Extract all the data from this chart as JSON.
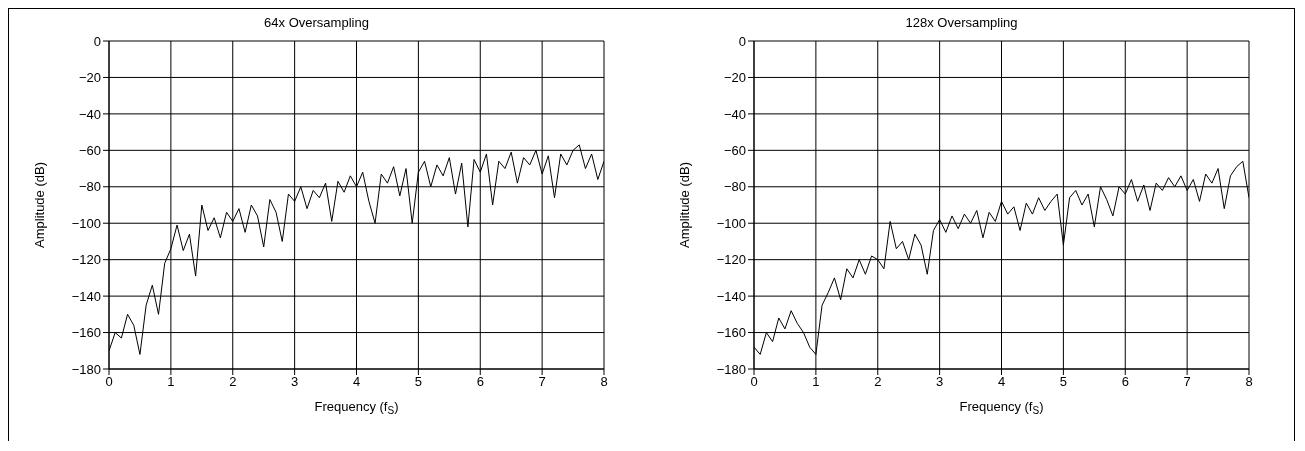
{
  "chart_data": [
    {
      "type": "line",
      "title": "64x Oversampling",
      "xlabel": "Frequency (f$_{S}$)",
      "ylabel": "Amplitude (dB)",
      "xlim": [
        0,
        8
      ],
      "xticks": [
        0,
        1,
        2,
        3,
        4,
        5,
        6,
        7,
        8
      ],
      "ylim": [
        -180,
        0
      ],
      "yticks": [
        -180,
        -160,
        -140,
        -120,
        -100,
        -80,
        -60,
        -40,
        -20,
        0
      ],
      "grid": true,
      "x": [
        0,
        0.1,
        0.2,
        0.3,
        0.4,
        0.5,
        0.6,
        0.7,
        0.8,
        0.9,
        1,
        1.1,
        1.2,
        1.3,
        1.4,
        1.5,
        1.6,
        1.7,
        1.8,
        1.9,
        2,
        2.1,
        2.2,
        2.3,
        2.4,
        2.5,
        2.6,
        2.7,
        2.8,
        2.9,
        3,
        3.1,
        3.2,
        3.3,
        3.4,
        3.5,
        3.6,
        3.7,
        3.8,
        3.9,
        4,
        4.1,
        4.2,
        4.3,
        4.4,
        4.5,
        4.6,
        4.7,
        4.8,
        4.9,
        5,
        5.1,
        5.2,
        5.3,
        5.4,
        5.5,
        5.6,
        5.7,
        5.8,
        5.9,
        6,
        6.1,
        6.2,
        6.3,
        6.4,
        6.5,
        6.6,
        6.7,
        6.8,
        6.9,
        7,
        7.1,
        7.2,
        7.3,
        7.4,
        7.5,
        7.6,
        7.7,
        7.8,
        7.9,
        8
      ],
      "series": [
        {
          "color": "#000000",
          "values": [
            -170,
            -160,
            -163,
            -150,
            -156,
            -172,
            -145,
            -134,
            -150,
            -122,
            -114,
            -101,
            -115,
            -106,
            -129,
            -90,
            -104,
            -97,
            -108,
            -94,
            -99,
            -92,
            -105,
            -90,
            -96,
            -113,
            -87,
            -94,
            -110,
            -84,
            -88,
            -80,
            -92,
            -82,
            -86,
            -78,
            -99,
            -77,
            -83,
            -74,
            -80,
            -72,
            -88,
            -100,
            -73,
            -78,
            -69,
            -85,
            -70,
            -100,
            -72,
            -66,
            -80,
            -68,
            -74,
            -64,
            -84,
            -67,
            -102,
            -65,
            -72,
            -62,
            -90,
            -66,
            -70,
            -61,
            -78,
            -64,
            -68,
            -60,
            -73,
            -63,
            -86,
            -62,
            -68,
            -60,
            -57,
            -70,
            -62,
            -76,
            -66
          ]
        }
      ]
    },
    {
      "type": "line",
      "title": "128x Oversampling",
      "xlabel": "Frequency (f$_{S}$)",
      "ylabel": "Amplitude (dB)",
      "xlim": [
        0,
        8
      ],
      "xticks": [
        0,
        1,
        2,
        3,
        4,
        5,
        6,
        7,
        8
      ],
      "ylim": [
        -180,
        0
      ],
      "yticks": [
        -180,
        -160,
        -140,
        -120,
        -100,
        -80,
        -60,
        -40,
        -20,
        0
      ],
      "grid": true,
      "x": [
        0,
        0.1,
        0.2,
        0.3,
        0.4,
        0.5,
        0.6,
        0.7,
        0.8,
        0.9,
        1,
        1.1,
        1.2,
        1.3,
        1.4,
        1.5,
        1.6,
        1.7,
        1.8,
        1.9,
        2,
        2.1,
        2.2,
        2.3,
        2.4,
        2.5,
        2.6,
        2.7,
        2.8,
        2.9,
        3,
        3.1,
        3.2,
        3.3,
        3.4,
        3.5,
        3.6,
        3.7,
        3.8,
        3.9,
        4,
        4.1,
        4.2,
        4.3,
        4.4,
        4.5,
        4.6,
        4.7,
        4.8,
        4.9,
        5,
        5.1,
        5.2,
        5.3,
        5.4,
        5.5,
        5.6,
        5.7,
        5.8,
        5.9,
        6,
        6.1,
        6.2,
        6.3,
        6.4,
        6.5,
        6.6,
        6.7,
        6.8,
        6.9,
        7,
        7.1,
        7.2,
        7.3,
        7.4,
        7.5,
        7.6,
        7.7,
        7.8,
        7.9,
        8
      ],
      "series": [
        {
          "color": "#000000",
          "values": [
            -168,
            -172,
            -160,
            -165,
            -152,
            -158,
            -148,
            -155,
            -160,
            -168,
            -172,
            -145,
            -138,
            -130,
            -142,
            -125,
            -130,
            -120,
            -128,
            -118,
            -120,
            -125,
            -99,
            -114,
            -110,
            -120,
            -106,
            -112,
            -128,
            -104,
            -98,
            -105,
            -96,
            -103,
            -95,
            -100,
            -93,
            -108,
            -94,
            -99,
            -88,
            -95,
            -91,
            -104,
            -89,
            -95,
            -86,
            -93,
            -88,
            -84,
            -112,
            -86,
            -82,
            -90,
            -84,
            -102,
            -80,
            -87,
            -96,
            -80,
            -84,
            -76,
            -88,
            -79,
            -93,
            -78,
            -82,
            -75,
            -80,
            -74,
            -82,
            -76,
            -88,
            -73,
            -78,
            -70,
            -92,
            -74,
            -69,
            -66,
            -86
          ]
        }
      ]
    }
  ]
}
